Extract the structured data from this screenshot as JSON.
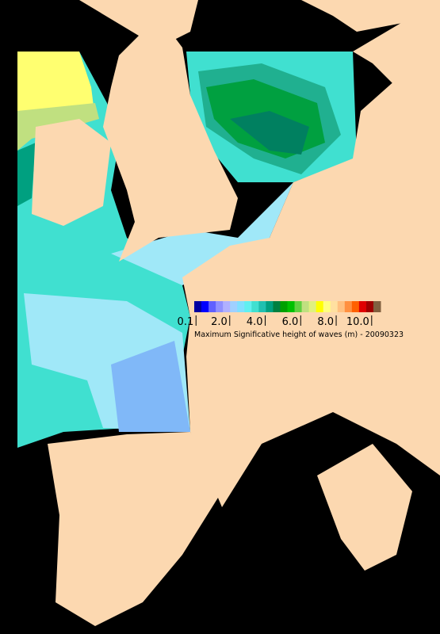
{
  "colorbar": {
    "colors": [
      "#0000a0",
      "#0000ff",
      "#6060ff",
      "#9090ff",
      "#b0b0ff",
      "#a0d0ff",
      "#80e0ff",
      "#60f0f0",
      "#40e0d0",
      "#20c0b0",
      "#00a080",
      "#008040",
      "#00a000",
      "#00c000",
      "#60d040",
      "#c0e080",
      "#e0f080",
      "#ffff00",
      "#ffff80",
      "#ffe0a0",
      "#ffc080",
      "#ff9040",
      "#ff6000",
      "#e00000",
      "#a00000",
      "#806040"
    ],
    "lim": [
      0,
      10.5
    ],
    "ticks": [
      0.1,
      {
        "value": 2,
        "label": "2.0"
      },
      {
        "value": 4,
        "label": "4.0"
      },
      {
        "value": 6,
        "label": "6.0"
      },
      {
        "value": 8,
        "label": "8.0"
      },
      {
        "value": 10,
        "label": "10.0"
      }
    ],
    "caption": "Maximum Significative height of waves (m) - 20090323"
  }
}
